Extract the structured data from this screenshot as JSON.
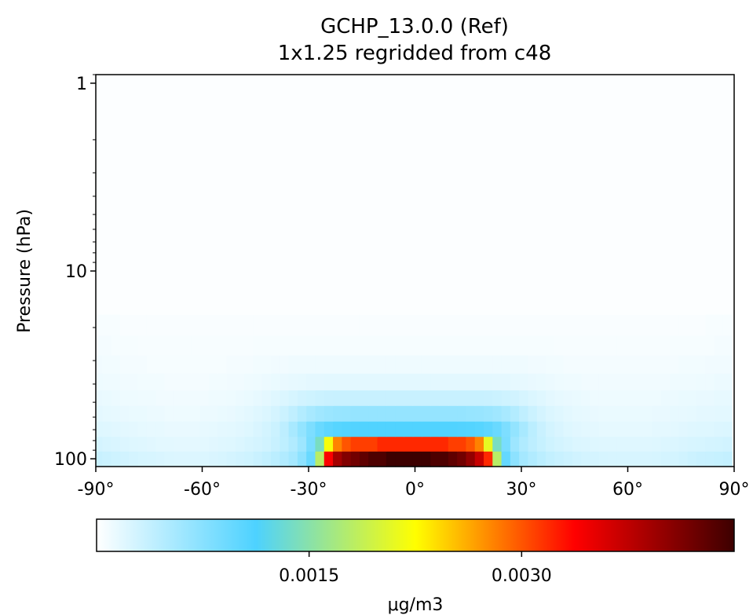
{
  "chart_data": {
    "type": "heatmap",
    "title": "GCHP_13.0.0 (Ref)",
    "subtitle": "1x1.25 regridded from c48",
    "ylabel": "Pressure (hPa)",
    "xlabel": "",
    "y_scale": "log",
    "y_inverted": true,
    "xlim": [
      -90,
      90
    ],
    "ylim": [
      110,
      0.9
    ],
    "x_ticks": [
      {
        "value": -90,
        "label": "-90°"
      },
      {
        "value": -60,
        "label": "-60°"
      },
      {
        "value": -30,
        "label": "-30°"
      },
      {
        "value": 0,
        "label": "0°"
      },
      {
        "value": 30,
        "label": "30°"
      },
      {
        "value": 60,
        "label": "60°"
      },
      {
        "value": 90,
        "label": "90°"
      }
    ],
    "y_ticks": [
      {
        "value": 1,
        "label": "1"
      },
      {
        "value": 10,
        "label": "10"
      },
      {
        "value": 100,
        "label": "100"
      }
    ],
    "colorbar": {
      "label": "μg/m3",
      "range": [
        0,
        0.0045
      ],
      "ticks": [
        {
          "value": 0.0015,
          "label": "0.0015"
        },
        {
          "value": 0.003,
          "label": "0.0030"
        }
      ],
      "colormap": "white-cyan-yellow-red-darkred",
      "colormap_stops": [
        "#ffffff",
        "#4dd2ff",
        "#ffff00",
        "#ff0000",
        "#3d0000"
      ]
    },
    "columns_lat": [
      -89.375,
      -86.875,
      -84.375,
      -81.875,
      -79.375,
      -76.875,
      -74.375,
      -71.875,
      -69.375,
      -66.875,
      -64.375,
      -61.875,
      -59.375,
      -56.875,
      -54.375,
      -51.875,
      -49.375,
      -46.875,
      -44.375,
      -41.875,
      -39.375,
      -36.875,
      -34.375,
      -31.875,
      -29.375,
      -26.875,
      -24.375,
      -21.875,
      -19.375,
      -16.875,
      -14.375,
      -11.875,
      -9.375,
      -6.875,
      -4.375,
      -1.875,
      0.625,
      3.125,
      5.625,
      8.125,
      10.625,
      13.125,
      15.625,
      18.125,
      20.625,
      23.125,
      25.625,
      28.125,
      30.625,
      33.125,
      35.625,
      38.125,
      40.625,
      43.125,
      45.625,
      48.125,
      50.625,
      53.125,
      55.625,
      58.125,
      60.625,
      63.125,
      65.625,
      68.125,
      70.625,
      73.125,
      75.625,
      78.125,
      80.625,
      83.125,
      85.625,
      88.125
    ],
    "rows": [
      {
        "p_top": 91,
        "p_bottom": 110,
        "values": [
          0.00035,
          0.00033,
          0.00031,
          0.00029,
          0.00027,
          0.00026,
          0.00025,
          0.00024,
          0.00023,
          0.00022,
          0.00022,
          0.00022,
          0.00023,
          0.00024,
          0.00025,
          0.00027,
          0.00029,
          0.00031,
          0.00034,
          0.00038,
          0.00043,
          0.00049,
          0.00057,
          0.00072,
          0.00095,
          0.0018,
          0.0034,
          0.0039,
          0.0041,
          0.0042,
          0.0043,
          0.0044,
          0.0044,
          0.0045,
          0.0045,
          0.0045,
          0.0045,
          0.0045,
          0.0044,
          0.0044,
          0.0043,
          0.0042,
          0.004,
          0.0037,
          0.0032,
          0.0018,
          0.00098,
          0.00072,
          0.00057,
          0.00049,
          0.00043,
          0.00038,
          0.00035,
          0.00032,
          0.0003,
          0.00028,
          0.00027,
          0.00026,
          0.00025,
          0.00025,
          0.00025,
          0.00025,
          0.00025,
          0.00026,
          0.00027,
          0.00028,
          0.0003,
          0.00032,
          0.00034,
          0.00035,
          0.00036,
          0.00037
        ]
      },
      {
        "p_top": 76,
        "p_bottom": 91,
        "values": [
          0.00027,
          0.00025,
          0.00024,
          0.00022,
          0.00021,
          0.0002,
          0.00019,
          0.00018,
          0.00018,
          0.00017,
          0.00017,
          0.00017,
          0.00018,
          0.00019,
          0.0002,
          0.00021,
          0.00023,
          0.00025,
          0.00027,
          0.0003,
          0.00035,
          0.00041,
          0.00049,
          0.00062,
          0.00085,
          0.0014,
          0.0022,
          0.0028,
          0.003,
          0.0031,
          0.0031,
          0.0031,
          0.0032,
          0.0032,
          0.0032,
          0.0032,
          0.0032,
          0.0032,
          0.0032,
          0.0032,
          0.0031,
          0.0031,
          0.003,
          0.0028,
          0.0021,
          0.0014,
          0.00085,
          0.00062,
          0.0005,
          0.00042,
          0.00036,
          0.00031,
          0.00028,
          0.00025,
          0.00023,
          0.00022,
          0.00021,
          0.0002,
          0.0002,
          0.0002,
          0.0002,
          0.0002,
          0.0002,
          0.00021,
          0.00022,
          0.00023,
          0.00024,
          0.00025,
          0.00026,
          0.00027,
          0.00028,
          0.00029
        ]
      },
      {
        "p_top": 63,
        "p_bottom": 76,
        "values": [
          0.00021,
          0.0002,
          0.00019,
          0.00018,
          0.00017,
          0.00016,
          0.00015,
          0.00015,
          0.00014,
          0.00014,
          0.00014,
          0.00014,
          0.00015,
          0.00016,
          0.00017,
          0.00018,
          0.00019,
          0.00021,
          0.00024,
          0.00028,
          0.00033,
          0.00042,
          0.00055,
          0.00068,
          0.00082,
          0.00095,
          0.00102,
          0.00106,
          0.00108,
          0.00109,
          0.0011,
          0.0011,
          0.0011,
          0.0011,
          0.0011,
          0.0011,
          0.0011,
          0.0011,
          0.0011,
          0.0011,
          0.0011,
          0.00109,
          0.00108,
          0.00106,
          0.00102,
          0.00095,
          0.00082,
          0.00068,
          0.00055,
          0.00043,
          0.00034,
          0.00028,
          0.00024,
          0.00021,
          0.00019,
          0.00018,
          0.00017,
          0.00016,
          0.00016,
          0.00016,
          0.00016,
          0.00016,
          0.00016,
          0.00017,
          0.00017,
          0.00018,
          0.00019,
          0.0002,
          0.00021,
          0.00021,
          0.00022,
          0.00023
        ]
      },
      {
        "p_top": 52,
        "p_bottom": 63,
        "values": [
          0.00017,
          0.00016,
          0.00015,
          0.00014,
          0.00013,
          0.00013,
          0.00012,
          0.00012,
          0.00011,
          0.00011,
          0.00011,
          0.00011,
          0.00012,
          0.00012,
          0.00013,
          0.00014,
          0.00016,
          0.00018,
          0.0002,
          0.00023,
          0.00027,
          0.00033,
          0.0004,
          0.00048,
          0.00055,
          0.0006,
          0.00063,
          0.00065,
          0.00066,
          0.00067,
          0.00067,
          0.00067,
          0.00067,
          0.00067,
          0.00067,
          0.00067,
          0.00067,
          0.00067,
          0.00067,
          0.00067,
          0.00067,
          0.00067,
          0.00066,
          0.00065,
          0.00063,
          0.0006,
          0.00055,
          0.00048,
          0.0004,
          0.00033,
          0.00027,
          0.00023,
          0.0002,
          0.00018,
          0.00016,
          0.00015,
          0.00014,
          0.00013,
          0.00013,
          0.00013,
          0.00013,
          0.00013,
          0.00013,
          0.00014,
          0.00014,
          0.00015,
          0.00015,
          0.00016,
          0.00017,
          0.00017,
          0.00018,
          0.00018
        ]
      },
      {
        "p_top": 43,
        "p_bottom": 52,
        "values": [
          0.00014,
          0.00013,
          0.00012,
          0.00011,
          0.00011,
          0.0001,
          0.0001,
          9e-05,
          9e-05,
          9e-05,
          9e-05,
          9e-05,
          9e-05,
          0.0001,
          0.0001,
          0.00011,
          0.00012,
          0.00013,
          0.00015,
          0.00017,
          0.0002,
          0.00023,
          0.00026,
          0.00029,
          0.00031,
          0.00033,
          0.00034,
          0.00035,
          0.00035,
          0.00035,
          0.00035,
          0.00035,
          0.00035,
          0.00035,
          0.00035,
          0.00035,
          0.00035,
          0.00035,
          0.00035,
          0.00035,
          0.00035,
          0.00035,
          0.00035,
          0.00035,
          0.00034,
          0.00033,
          0.00031,
          0.00029,
          0.00026,
          0.00023,
          0.0002,
          0.00017,
          0.00015,
          0.00014,
          0.00013,
          0.00012,
          0.00011,
          0.00011,
          0.00011,
          0.00011,
          0.00011,
          0.00011,
          0.00011,
          0.00011,
          0.00012,
          0.00012,
          0.00013,
          0.00013,
          0.00014,
          0.00014,
          0.00015,
          0.00015
        ]
      },
      {
        "p_top": 35,
        "p_bottom": 43,
        "values": [
          0.00011,
          0.0001,
          0.0001,
          9e-05,
          9e-05,
          8e-05,
          8e-05,
          8e-05,
          7e-05,
          7e-05,
          7e-05,
          7e-05,
          7e-05,
          8e-05,
          8e-05,
          9e-05,
          9e-05,
          0.0001,
          0.00011,
          0.00012,
          0.00013,
          0.00014,
          0.00015,
          0.00016,
          0.00017,
          0.00017,
          0.00018,
          0.00018,
          0.00018,
          0.00018,
          0.00018,
          0.00018,
          0.00018,
          0.00018,
          0.00018,
          0.00018,
          0.00018,
          0.00018,
          0.00018,
          0.00018,
          0.00018,
          0.00018,
          0.00018,
          0.00018,
          0.00018,
          0.00017,
          0.00017,
          0.00016,
          0.00015,
          0.00014,
          0.00013,
          0.00012,
          0.00011,
          0.0001,
          0.0001,
          9e-05,
          9e-05,
          9e-05,
          9e-05,
          9e-05,
          9e-05,
          9e-05,
          9e-05,
          9e-05,
          9e-05,
          0.0001,
          0.0001,
          0.0001,
          0.00011,
          0.00011,
          0.00012,
          0.00012
        ]
      },
      {
        "p_top": 28,
        "p_bottom": 35,
        "values": [
          9e-05,
          8e-05,
          8e-05,
          7e-05,
          7e-05,
          7e-05,
          6e-05,
          6e-05,
          6e-05,
          6e-05,
          6e-05,
          6e-05,
          6e-05,
          6e-05,
          6e-05,
          7e-05,
          7e-05,
          7e-05,
          8e-05,
          8e-05,
          9e-05,
          9e-05,
          0.0001,
          0.0001,
          0.0001,
          0.0001,
          0.0001,
          0.0001,
          0.0001,
          0.0001,
          0.0001,
          0.0001,
          0.0001,
          0.0001,
          0.0001,
          0.0001,
          0.0001,
          0.0001,
          0.0001,
          0.0001,
          0.0001,
          0.0001,
          0.0001,
          0.0001,
          0.0001,
          0.0001,
          0.0001,
          0.0001,
          0.0001,
          9e-05,
          9e-05,
          8e-05,
          8e-05,
          7e-05,
          7e-05,
          7e-05,
          7e-05,
          7e-05,
          7e-05,
          7e-05,
          7e-05,
          7e-05,
          7e-05,
          7e-05,
          7e-05,
          7e-05,
          8e-05,
          8e-05,
          8e-05,
          9e-05,
          9e-05,
          9e-05
        ]
      },
      {
        "p_top": 22,
        "p_bottom": 28,
        "values": [
          7e-05,
          7e-05,
          6e-05,
          6e-05,
          6e-05,
          5e-05,
          5e-05,
          5e-05,
          5e-05,
          5e-05,
          5e-05,
          5e-05,
          5e-05,
          5e-05,
          5e-05,
          5e-05,
          5e-05,
          5e-05,
          6e-05,
          6e-05,
          6e-05,
          6e-05,
          6e-05,
          6e-05,
          6e-05,
          6e-05,
          6e-05,
          6e-05,
          6e-05,
          6e-05,
          6e-05,
          6e-05,
          6e-05,
          6e-05,
          6e-05,
          6e-05,
          6e-05,
          6e-05,
          6e-05,
          6e-05,
          6e-05,
          6e-05,
          6e-05,
          6e-05,
          6e-05,
          6e-05,
          6e-05,
          6e-05,
          6e-05,
          6e-05,
          6e-05,
          6e-05,
          5e-05,
          5e-05,
          5e-05,
          5e-05,
          5e-05,
          5e-05,
          5e-05,
          5e-05,
          5e-05,
          5e-05,
          5e-05,
          5e-05,
          5e-05,
          6e-05,
          6e-05,
          6e-05,
          6e-05,
          6e-05,
          7e-05,
          7e-05
        ]
      },
      {
        "p_top": 17,
        "p_bottom": 22,
        "values": [
          5e-05,
          5e-05,
          5e-05,
          4e-05,
          4e-05,
          4e-05,
          4e-05,
          4e-05,
          4e-05,
          4e-05,
          4e-05,
          4e-05,
          4e-05,
          4e-05,
          4e-05,
          4e-05,
          4e-05,
          4e-05,
          4e-05,
          4e-05,
          4e-05,
          4e-05,
          4e-05,
          4e-05,
          4e-05,
          4e-05,
          4e-05,
          4e-05,
          4e-05,
          4e-05,
          4e-05,
          4e-05,
          4e-05,
          4e-05,
          4e-05,
          4e-05,
          4e-05,
          4e-05,
          4e-05,
          4e-05,
          4e-05,
          4e-05,
          4e-05,
          4e-05,
          4e-05,
          4e-05,
          4e-05,
          4e-05,
          4e-05,
          4e-05,
          4e-05,
          4e-05,
          4e-05,
          4e-05,
          4e-05,
          4e-05,
          4e-05,
          4e-05,
          4e-05,
          4e-05,
          4e-05,
          4e-05,
          4e-05,
          4e-05,
          4e-05,
          4e-05,
          4e-05,
          4e-05,
          4e-05,
          5e-05,
          5e-05,
          5e-05
        ]
      },
      {
        "p_top": 0.9,
        "p_bottom": 17,
        "values": [
          2e-05,
          2e-05,
          2e-05,
          2e-05,
          2e-05,
          2e-05,
          2e-05,
          2e-05,
          2e-05,
          2e-05,
          2e-05,
          2e-05,
          2e-05,
          2e-05,
          2e-05,
          2e-05,
          2e-05,
          2e-05,
          2e-05,
          2e-05,
          2e-05,
          2e-05,
          2e-05,
          2e-05,
          2e-05,
          2e-05,
          2e-05,
          2e-05,
          2e-05,
          2e-05,
          2e-05,
          2e-05,
          2e-05,
          2e-05,
          2e-05,
          2e-05,
          2e-05,
          2e-05,
          2e-05,
          2e-05,
          2e-05,
          2e-05,
          2e-05,
          2e-05,
          2e-05,
          2e-05,
          2e-05,
          2e-05,
          2e-05,
          2e-05,
          2e-05,
          2e-05,
          2e-05,
          2e-05,
          2e-05,
          2e-05,
          2e-05,
          2e-05,
          2e-05,
          2e-05,
          2e-05,
          2e-05,
          2e-05,
          2e-05,
          2e-05,
          2e-05,
          2e-05,
          2e-05,
          2e-05,
          2e-05,
          2e-05,
          2e-05
        ]
      }
    ]
  }
}
